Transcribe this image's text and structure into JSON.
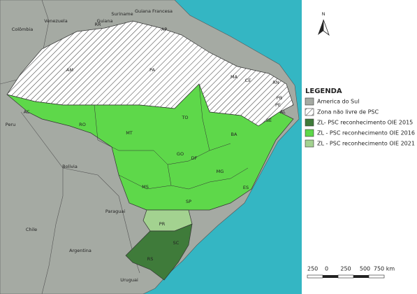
{
  "map": {
    "north": "N",
    "countries": [
      "Venezuela",
      "Colômbia",
      "Guiana",
      "Suriname",
      "Guiana Francesa",
      "Peru",
      "Bolivia",
      "Paraguai",
      "Chile",
      "Argentina",
      "Uruguai"
    ],
    "states": [
      "RR",
      "AP",
      "AM",
      "PA",
      "MA",
      "CE",
      "RN",
      "PB",
      "PE",
      "AL",
      "SE",
      "AC",
      "RO",
      "MT",
      "TO",
      "BA",
      "GO",
      "DF",
      "MG",
      "ES",
      "MS",
      "SP",
      "PR",
      "SC",
      "RS"
    ],
    "legend": {
      "title": "LEGENDA",
      "items": [
        {
          "label": "America do Sul",
          "color": "#a5aaa3"
        },
        {
          "label": "Zona não livre de PSC",
          "color": "#ffffff"
        },
        {
          "label": "ZL- PSC reconhecimento OIE 2015",
          "color": "#3f7b3a"
        },
        {
          "label": "ZL - PSC reconhecimento OIE 2016",
          "color": "#5ed84a"
        },
        {
          "label": "ZL - PSC reconhecimento OIE 2021",
          "color": "#a3d290"
        }
      ]
    },
    "scale": {
      "labels": [
        "250",
        "0",
        "250",
        "500",
        "750 km"
      ]
    }
  }
}
